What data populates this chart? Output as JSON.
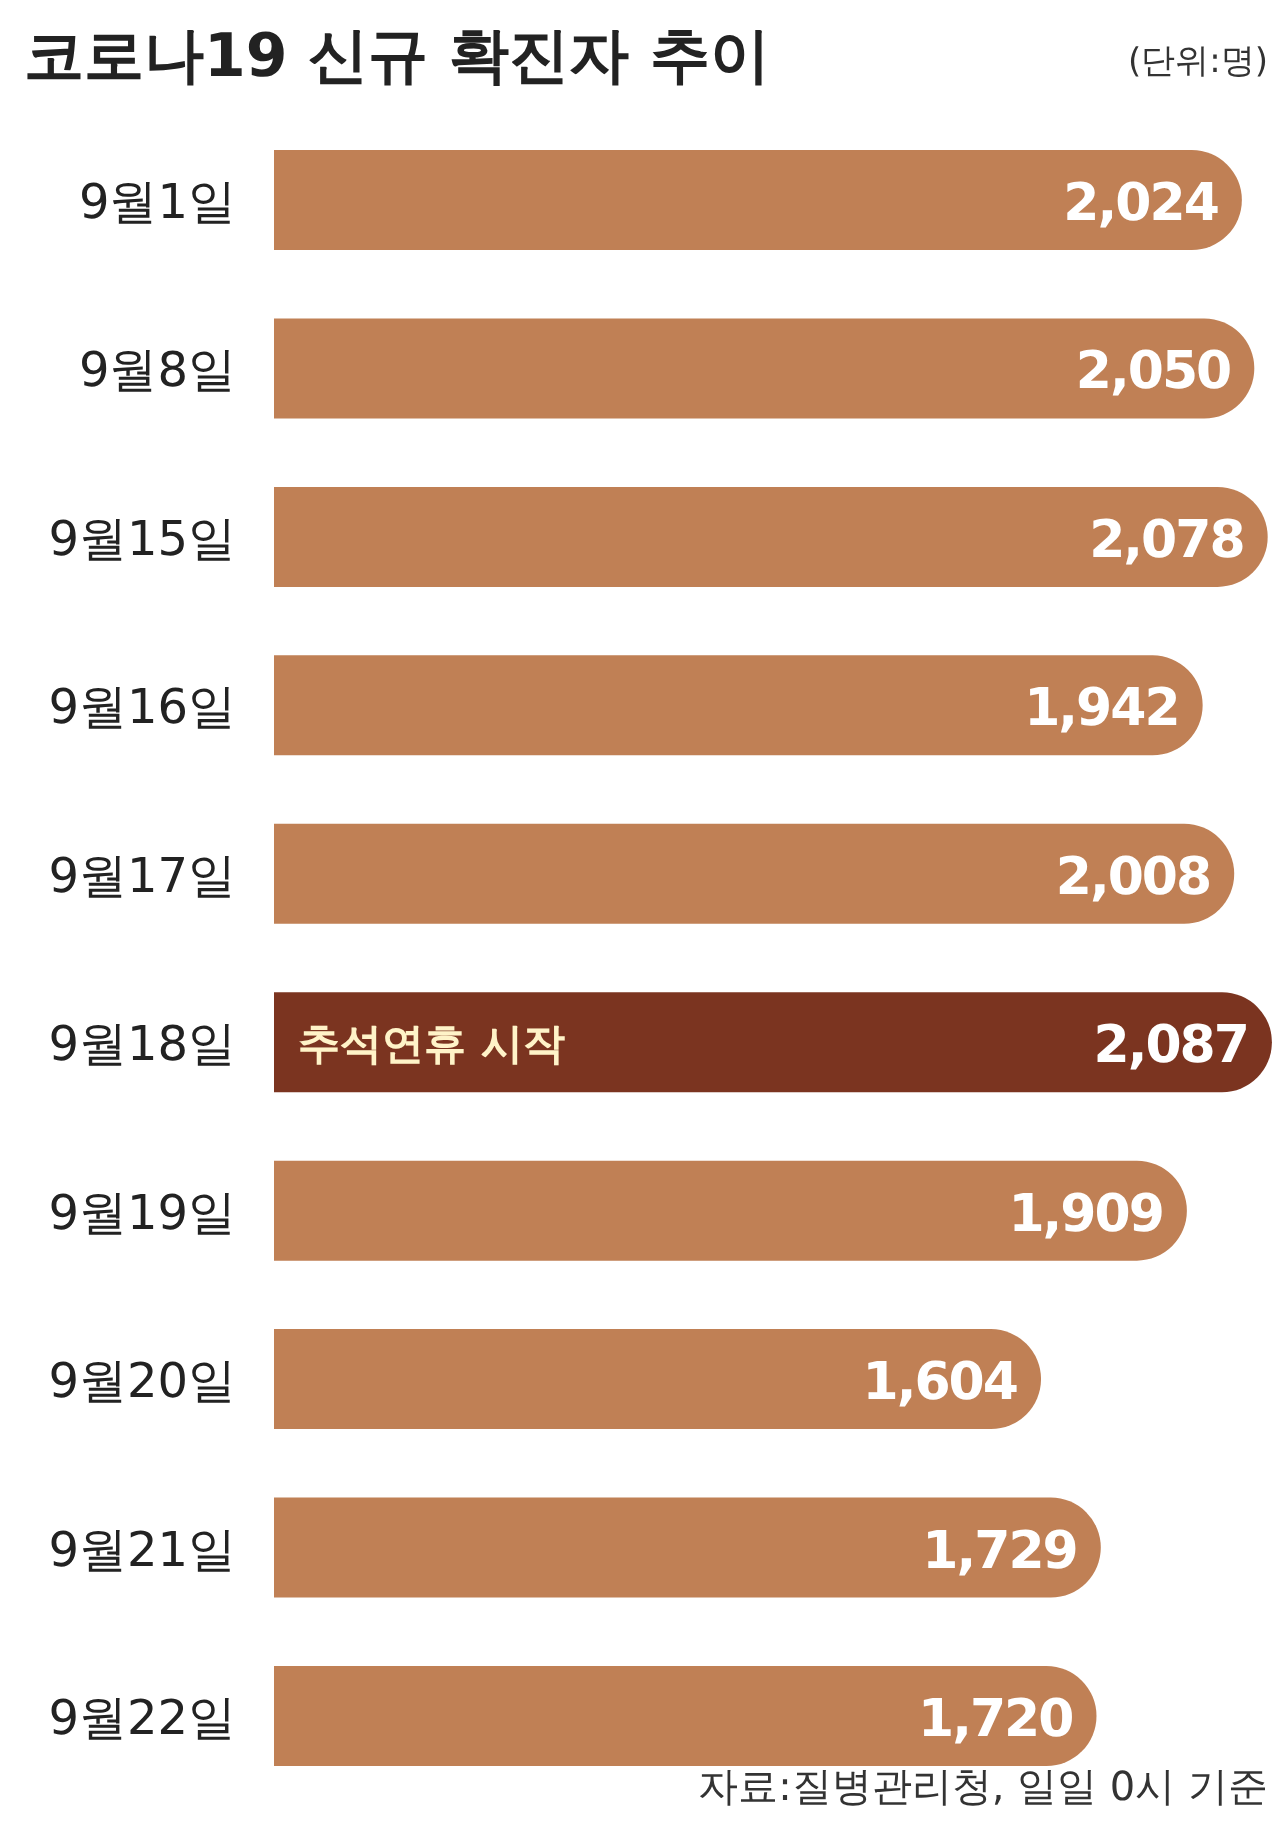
{
  "chart_data": {
    "type": "bar",
    "orientation": "horizontal",
    "title": "코로나19 신규 확진자 추이",
    "subtitle": "(단위:명)",
    "categories": [
      "9월1일",
      "9월8일",
      "9월15일",
      "9월16일",
      "9월17일",
      "9월18일",
      "9월19일",
      "9월20일",
      "9월21일",
      "9월22일"
    ],
    "values": [
      2024,
      2050,
      2078,
      1942,
      2008,
      2087,
      1909,
      1604,
      1729,
      1720
    ],
    "colors": [
      "#c08055",
      "#c08055",
      "#c08055",
      "#c08055",
      "#c08055",
      "#7b3420",
      "#c08055",
      "#c08055",
      "#c08055",
      "#c08055"
    ],
    "value_labels": [
      "2,024",
      "2,050",
      "2,078",
      "1,942",
      "2,008",
      "2,087",
      "1,909",
      "1,604",
      "1,729",
      "1,720"
    ],
    "annotations": [
      "추석연휴 시작",
      "자료:질병관리청, 일일 0시 기준"
    ]
  }
}
